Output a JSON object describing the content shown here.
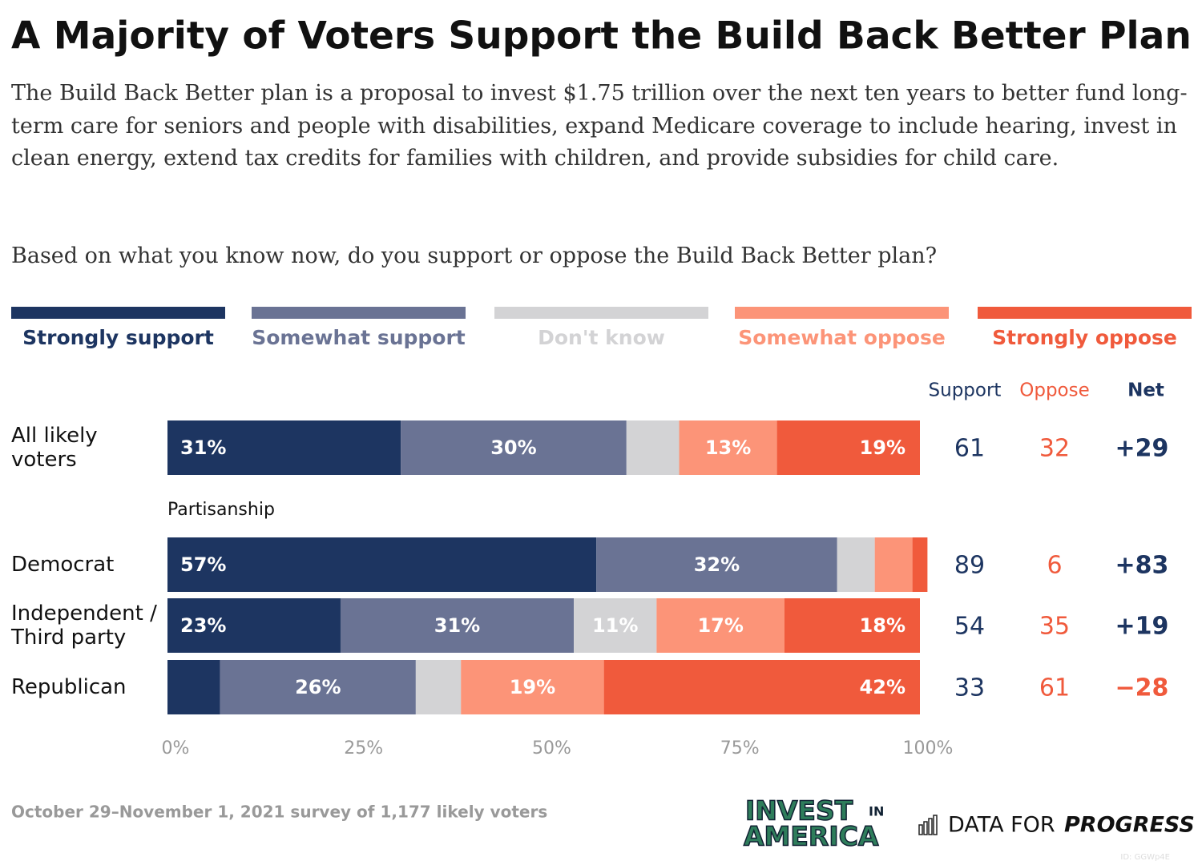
{
  "chart_data": {
    "type": "stacked-bar-horizontal",
    "title": "A Majority of Voters Support the Build Back Better Plan",
    "subtitle": "The Build Back Better plan is a proposal to invest $1.75 trillion over the next ten years to better fund long-term care for seniors and people with disabilities, expand Medicare coverage to include hearing, invest in clean energy, extend tax credits for families with children, and provide subsidies for child care.",
    "question": "Based on what you know now, do you support or oppose the Build Back Better plan?",
    "group_label": "Partisanship",
    "categories": [
      "All likely voters",
      "Democrat",
      "Independent / Third party",
      "Republican"
    ],
    "series": [
      {
        "name": "Strongly support",
        "color": "#1d3561",
        "values": [
          31,
          57,
          23,
          7
        ],
        "value_labels": [
          "31%",
          "57%",
          "23%",
          null
        ]
      },
      {
        "name": "Somewhat support",
        "color": "#6a7394",
        "values": [
          30,
          32,
          31,
          26
        ],
        "value_labels": [
          "30%",
          "32%",
          "31%",
          "26%"
        ]
      },
      {
        "name": "Don't know",
        "color": "#d3d3d5",
        "values": [
          7,
          5,
          11,
          6
        ],
        "value_labels": [
          null,
          null,
          "11%",
          null
        ]
      },
      {
        "name": "Somewhat oppose",
        "color": "#fc9478",
        "values": [
          13,
          5,
          17,
          19
        ],
        "value_labels": [
          "13%",
          null,
          "17%",
          "19%"
        ]
      },
      {
        "name": "Strongly oppose",
        "color": "#f05a3c",
        "values": [
          19,
          2,
          18,
          42
        ],
        "value_labels": [
          "19%",
          null,
          "18%",
          "42%"
        ]
      }
    ],
    "xlim": [
      0,
      100
    ],
    "xticks": [
      {
        "value": 0,
        "label": "0%"
      },
      {
        "value": 25,
        "label": "25%"
      },
      {
        "value": 50,
        "label": "50%"
      },
      {
        "value": 75,
        "label": "75%"
      },
      {
        "value": 100,
        "label": "100%"
      }
    ],
    "summary": {
      "headers": [
        "Support",
        "Oppose",
        "Net"
      ],
      "support": [
        61,
        89,
        54,
        33
      ],
      "oppose": [
        32,
        6,
        35,
        61
      ],
      "net": [
        {
          "value": 29,
          "label": "+29"
        },
        {
          "value": 83,
          "label": "+83"
        },
        {
          "value": 19,
          "label": "+19"
        },
        {
          "value": -28,
          "label": "−28"
        }
      ]
    },
    "footnote": "October 29–November 1, 2021 survey of 1,177 likely voters",
    "logos": {
      "invest_top": "INVEST",
      "invest_in": "IN",
      "invest_bottom": "AMERICA",
      "dfp_regular": "DATA FOR",
      "dfp_bold": "PROGRESS"
    },
    "id_text": "ID: GGWp4E"
  }
}
